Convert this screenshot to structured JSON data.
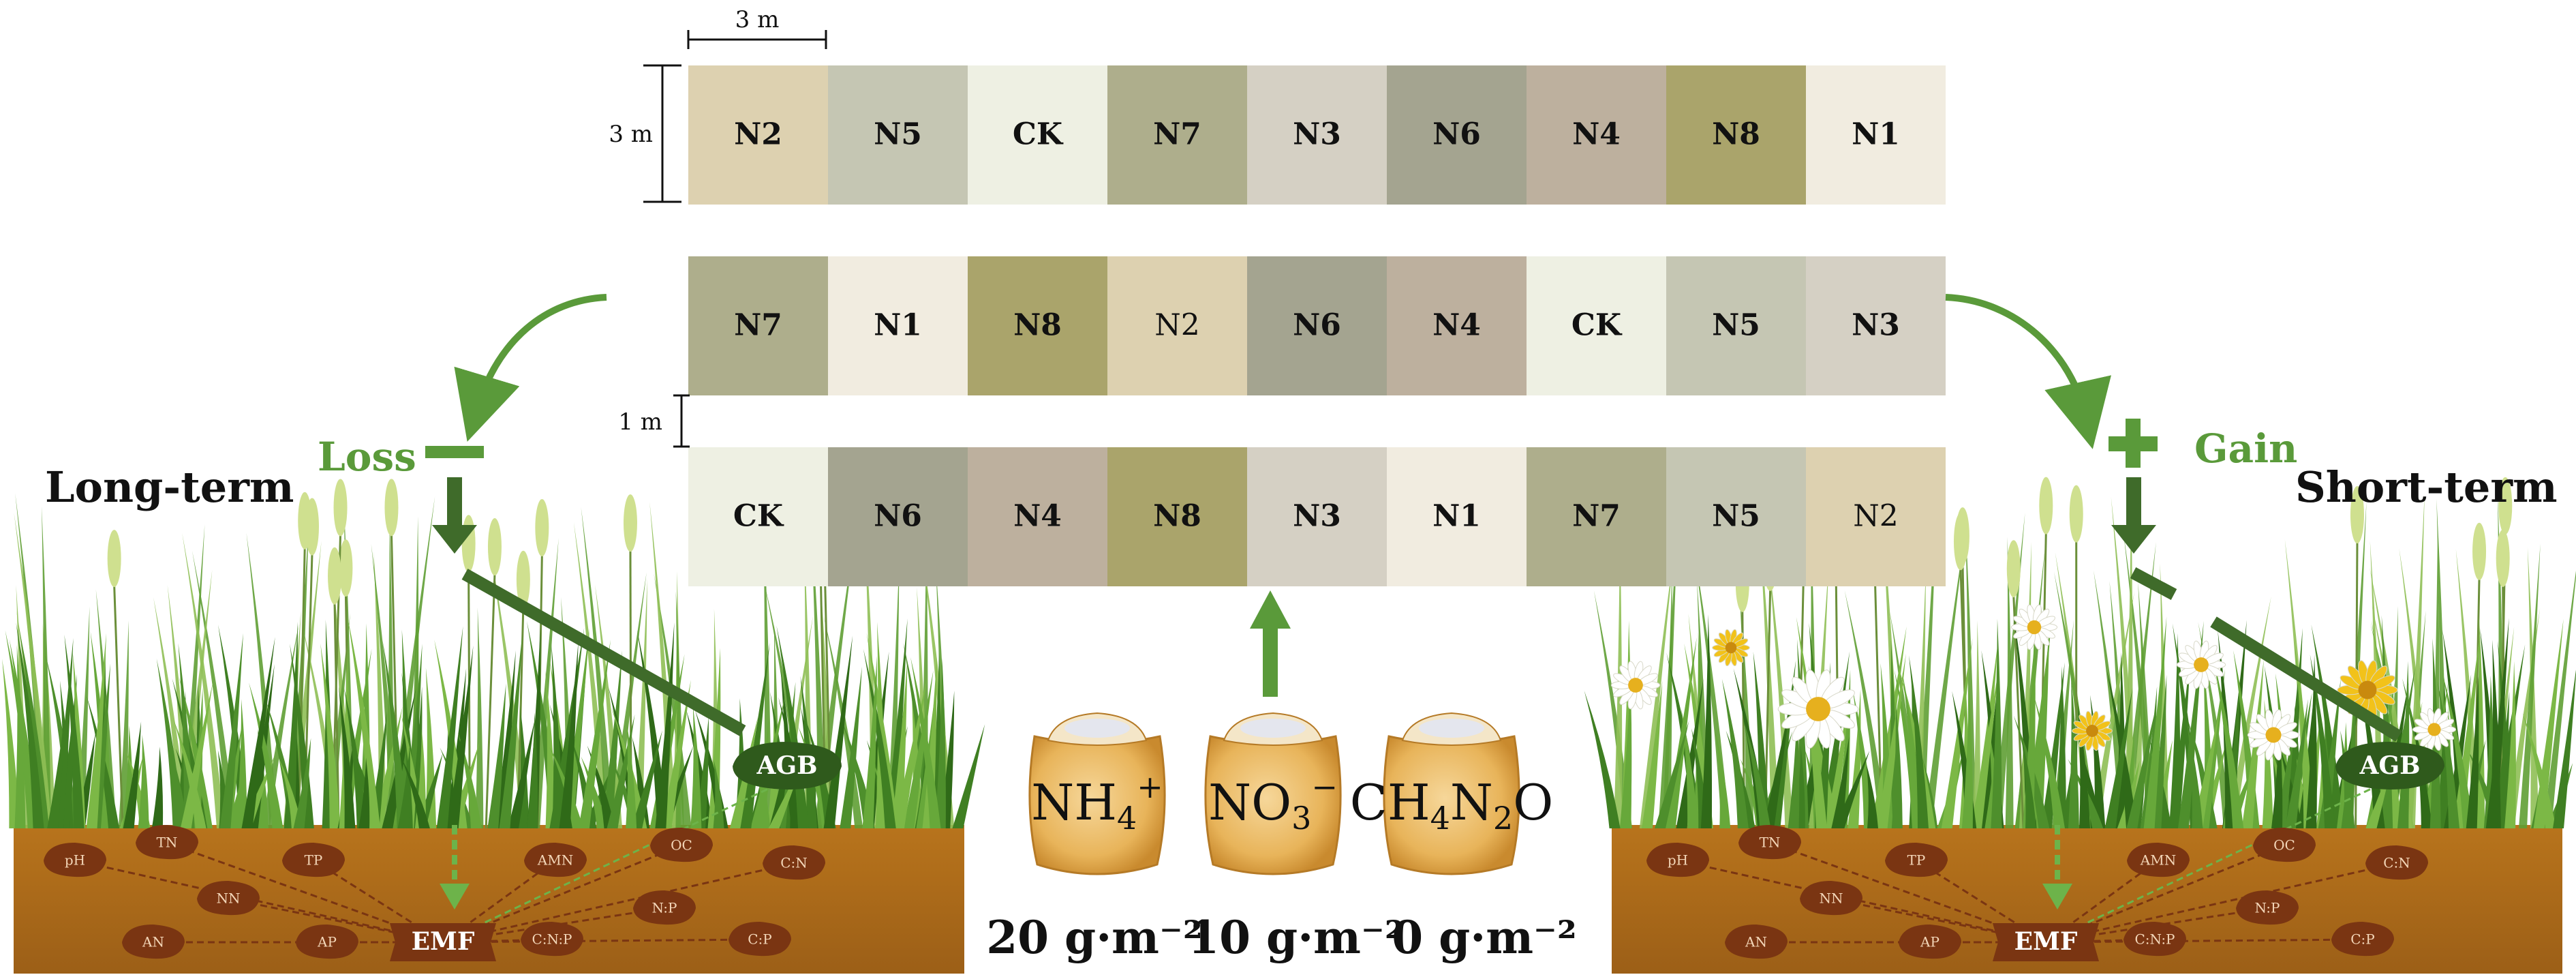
{
  "dimensions": {
    "width_label": "3 m",
    "height_label": "3 m",
    "gap_label": "1 m"
  },
  "plots": {
    "rows": [
      [
        {
          "label": "N2",
          "color": "#ddd1b0",
          "bold": true
        },
        {
          "label": "N5",
          "color": "#c5c6b3",
          "bold": true
        },
        {
          "label": "CK",
          "color": "#eef0e3",
          "bold": true
        },
        {
          "label": "N7",
          "color": "#aeae8c",
          "bold": true
        },
        {
          "label": "N3",
          "color": "#d5d0c4",
          "bold": true
        },
        {
          "label": "N6",
          "color": "#a4a490",
          "bold": true
        },
        {
          "label": "N4",
          "color": "#bdb09e",
          "bold": true
        },
        {
          "label": "N8",
          "color": "#aaa46b",
          "bold": true
        },
        {
          "label": "N1",
          "color": "#f1ece0",
          "bold": true
        }
      ],
      [
        {
          "label": "N7",
          "color": "#aeae8c",
          "bold": true
        },
        {
          "label": "N1",
          "color": "#f1ece0",
          "bold": true
        },
        {
          "label": "N8",
          "color": "#aaa46b",
          "bold": true
        },
        {
          "label": "N2",
          "color": "#ddd1b0",
          "bold": false
        },
        {
          "label": "N6",
          "color": "#a4a490",
          "bold": true
        },
        {
          "label": "N4",
          "color": "#bdb09e",
          "bold": true
        },
        {
          "label": "CK",
          "color": "#eef0e3",
          "bold": true
        },
        {
          "label": "N5",
          "color": "#c5c6b3",
          "bold": true
        },
        {
          "label": "N3",
          "color": "#d5d0c4",
          "bold": true
        }
      ],
      [
        {
          "label": "CK",
          "color": "#eef0e3",
          "bold": true
        },
        {
          "label": "N6",
          "color": "#a4a490",
          "bold": true
        },
        {
          "label": "N4",
          "color": "#bdb09e",
          "bold": true
        },
        {
          "label": "N8",
          "color": "#aaa46b",
          "bold": true
        },
        {
          "label": "N3",
          "color": "#d5d0c4",
          "bold": true
        },
        {
          "label": "N1",
          "color": "#f1ece0",
          "bold": true
        },
        {
          "label": "N7",
          "color": "#aeae8c",
          "bold": true
        },
        {
          "label": "N5",
          "color": "#c5c6b3",
          "bold": true
        },
        {
          "label": "N2",
          "color": "#ddd1b0",
          "bold": false
        }
      ]
    ]
  },
  "left": {
    "title": "Long-term",
    "effect": "Loss",
    "effect_symbol": "—"
  },
  "right": {
    "title": "Short-term",
    "effect": "Gain",
    "effect_symbol": "+"
  },
  "soil": {
    "nodes": [
      "pH",
      "TN",
      "TP",
      "NN",
      "AN",
      "AP",
      "AMN",
      "OC",
      "C:N",
      "N:P",
      "C:N:P",
      "C:P"
    ],
    "emf": "EMF",
    "agb": "AGB"
  },
  "fertilizers": {
    "bags": [
      {
        "formula_main": "NH",
        "sub": "4",
        "sup": "+"
      },
      {
        "formula_main": "NO",
        "sub": "3",
        "sup": "−"
      },
      {
        "formula_parts": [
          "CH",
          "4",
          "N",
          "2",
          "O"
        ]
      }
    ],
    "rates": [
      "20 g·m⁻²",
      "10 g·m⁻²",
      "0 g·m⁻²"
    ]
  },
  "colors": {
    "arrow_green": "#5a9a3a",
    "dark_green": "#3f6b2a",
    "soil": "#a86a1b",
    "node_brown": "#7a3512",
    "grass": "#4e8f2c"
  }
}
